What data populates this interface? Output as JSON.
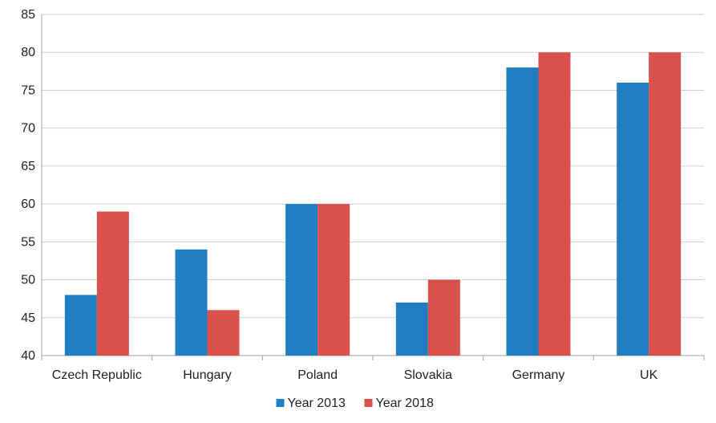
{
  "chart_data": {
    "type": "bar",
    "title": "",
    "xlabel": "",
    "ylabel": "",
    "categories": [
      "Czech Republic",
      "Hungary",
      "Poland",
      "Slovakia",
      "Germany",
      "UK"
    ],
    "series": [
      {
        "name": "Year 2013",
        "color": "#1f7ec2",
        "values": [
          48,
          54,
          60,
          47,
          78,
          76
        ]
      },
      {
        "name": "Year 2018",
        "color": "#d9504d",
        "values": [
          59,
          46,
          60,
          50,
          80,
          80
        ]
      }
    ],
    "ylim": [
      40,
      85
    ],
    "yticks": [
      40,
      45,
      50,
      55,
      60,
      65,
      70,
      75,
      80,
      85
    ],
    "grid": "horizontal",
    "legend_position": "bottom-center"
  }
}
